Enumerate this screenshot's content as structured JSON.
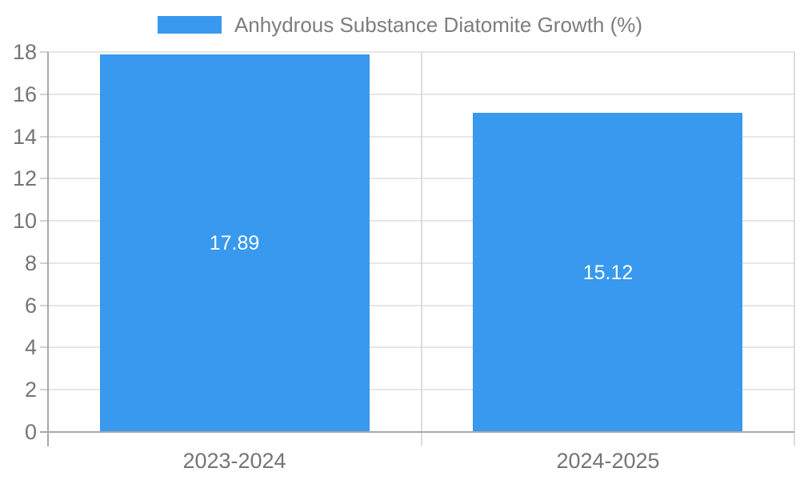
{
  "chart_data": {
    "type": "bar",
    "title": "",
    "legend_label": "Anhydrous Substance Diatomite Growth (%)",
    "legend_position": "top-center",
    "categories": [
      "2023-2024",
      "2024-2025"
    ],
    "values": [
      17.89,
      15.12
    ],
    "value_labels": [
      "17.89",
      "15.12"
    ],
    "ylim": [
      0,
      18
    ],
    "yticks": [
      0,
      2,
      4,
      6,
      8,
      10,
      12,
      14,
      16,
      18
    ],
    "grid": true,
    "colors": {
      "bar": "#3899ee",
      "bar_value_label": "#ffffff",
      "axis_text": "#757575",
      "legend_text": "#7d7d7d",
      "gridline": "#e6e6e6",
      "category_gridline": "#dcdcdc",
      "axis_line": "#a8a8a8",
      "tick": "#d2d2d2",
      "background": "#ffffff"
    }
  }
}
